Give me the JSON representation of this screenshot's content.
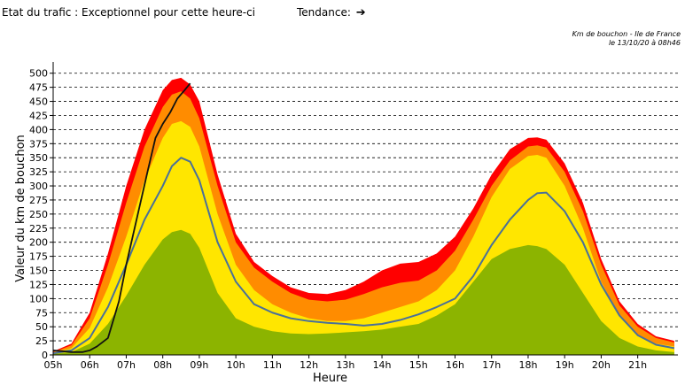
{
  "header": {
    "status_label": "Etat du trafic : Exceptionnel pour cette heure-ci",
    "trend_label": "Tendance:",
    "trend_arrow": "➔"
  },
  "chart_meta": {
    "line1": "Km de bouchon - Ile de France",
    "line2": "le 13/10/20 à 08h46"
  },
  "chart_data": {
    "type": "area",
    "xlabel": "Heure",
    "ylabel": "Valeur du  km de bouchon",
    "ylim": [
      0,
      520
    ],
    "yticks": [
      0,
      25,
      50,
      75,
      100,
      125,
      150,
      175,
      200,
      225,
      250,
      275,
      300,
      325,
      350,
      375,
      400,
      425,
      450,
      475,
      500
    ],
    "xlim": [
      5.0,
      22.1
    ],
    "xticks": [
      {
        "x": 5,
        "label": "05h"
      },
      {
        "x": 6,
        "label": "06h"
      },
      {
        "x": 7,
        "label": "07h"
      },
      {
        "x": 8,
        "label": "08h"
      },
      {
        "x": 9,
        "label": "09h"
      },
      {
        "x": 10,
        "label": "10h"
      },
      {
        "x": 11,
        "label": "11h"
      },
      {
        "x": 12,
        "label": "12h"
      },
      {
        "x": 13,
        "label": "13h"
      },
      {
        "x": 14,
        "label": "14h"
      },
      {
        "x": 15,
        "label": "15h"
      },
      {
        "x": 16,
        "label": "16h"
      },
      {
        "x": 17,
        "label": "17h"
      },
      {
        "x": 18,
        "label": "18h"
      },
      {
        "x": 19,
        "label": "19h"
      },
      {
        "x": 20,
        "label": "20h"
      },
      {
        "x": 21,
        "label": "21h"
      }
    ],
    "grid": "horizontal-dashed",
    "x": [
      5.0,
      5.5,
      6.0,
      6.5,
      7.0,
      7.5,
      8.0,
      8.25,
      8.5,
      8.75,
      9.0,
      9.5,
      10.0,
      10.5,
      11.0,
      11.5,
      12.0,
      12.5,
      13.0,
      13.5,
      14.0,
      14.5,
      15.0,
      15.5,
      16.0,
      16.5,
      17.0,
      17.5,
      18.0,
      18.25,
      18.5,
      19.0,
      19.5,
      20.0,
      20.5,
      21.0,
      21.5,
      22.0
    ],
    "bands": [
      {
        "color": "#ff0000",
        "values": [
          6,
          20,
          75,
          180,
          300,
          400,
          470,
          488,
          492,
          480,
          450,
          320,
          215,
          165,
          140,
          120,
          110,
          108,
          115,
          130,
          150,
          162,
          165,
          180,
          210,
          260,
          320,
          365,
          385,
          386,
          382,
          340,
          270,
          170,
          95,
          55,
          33,
          25
        ]
      },
      {
        "color": "#ff8c00",
        "values": [
          5,
          17,
          65,
          160,
          270,
          370,
          440,
          462,
          468,
          455,
          420,
          300,
          200,
          155,
          130,
          110,
          98,
          95,
          98,
          108,
          120,
          128,
          132,
          150,
          185,
          240,
          300,
          345,
          370,
          372,
          368,
          325,
          255,
          160,
          88,
          50,
          30,
          22
        ]
      },
      {
        "color": "#ffe600",
        "values": [
          4,
          12,
          48,
          120,
          210,
          310,
          385,
          410,
          415,
          405,
          370,
          250,
          160,
          115,
          90,
          75,
          65,
          60,
          60,
          65,
          75,
          85,
          95,
          115,
          150,
          210,
          280,
          330,
          353,
          355,
          350,
          300,
          225,
          130,
          70,
          35,
          20,
          15
        ]
      },
      {
        "color": "#8cb400",
        "values": [
          2,
          5,
          20,
          55,
          105,
          160,
          205,
          218,
          222,
          215,
          190,
          110,
          65,
          50,
          42,
          38,
          37,
          38,
          40,
          42,
          45,
          50,
          55,
          70,
          90,
          130,
          170,
          188,
          195,
          193,
          188,
          160,
          110,
          60,
          30,
          15,
          8,
          5
        ]
      }
    ],
    "series": [
      {
        "color": "#4a7099",
        "values": [
          3,
          8,
          30,
          85,
          160,
          240,
          300,
          335,
          350,
          343,
          310,
          200,
          130,
          90,
          75,
          65,
          60,
          57,
          55,
          52,
          55,
          62,
          72,
          85,
          100,
          140,
          195,
          240,
          275,
          287,
          288,
          255,
          200,
          125,
          70,
          35,
          18,
          12
        ]
      },
      {
        "color": "#111111",
        "x": [
          5.0,
          5.5,
          5.8,
          6.0,
          6.2,
          6.5,
          6.8,
          7.0,
          7.3,
          7.6,
          7.8,
          8.0,
          8.2,
          8.4,
          8.6,
          8.75
        ],
        "values": [
          8,
          5,
          5,
          8,
          15,
          30,
          95,
          160,
          245,
          330,
          385,
          410,
          430,
          455,
          470,
          482
        ]
      }
    ]
  }
}
